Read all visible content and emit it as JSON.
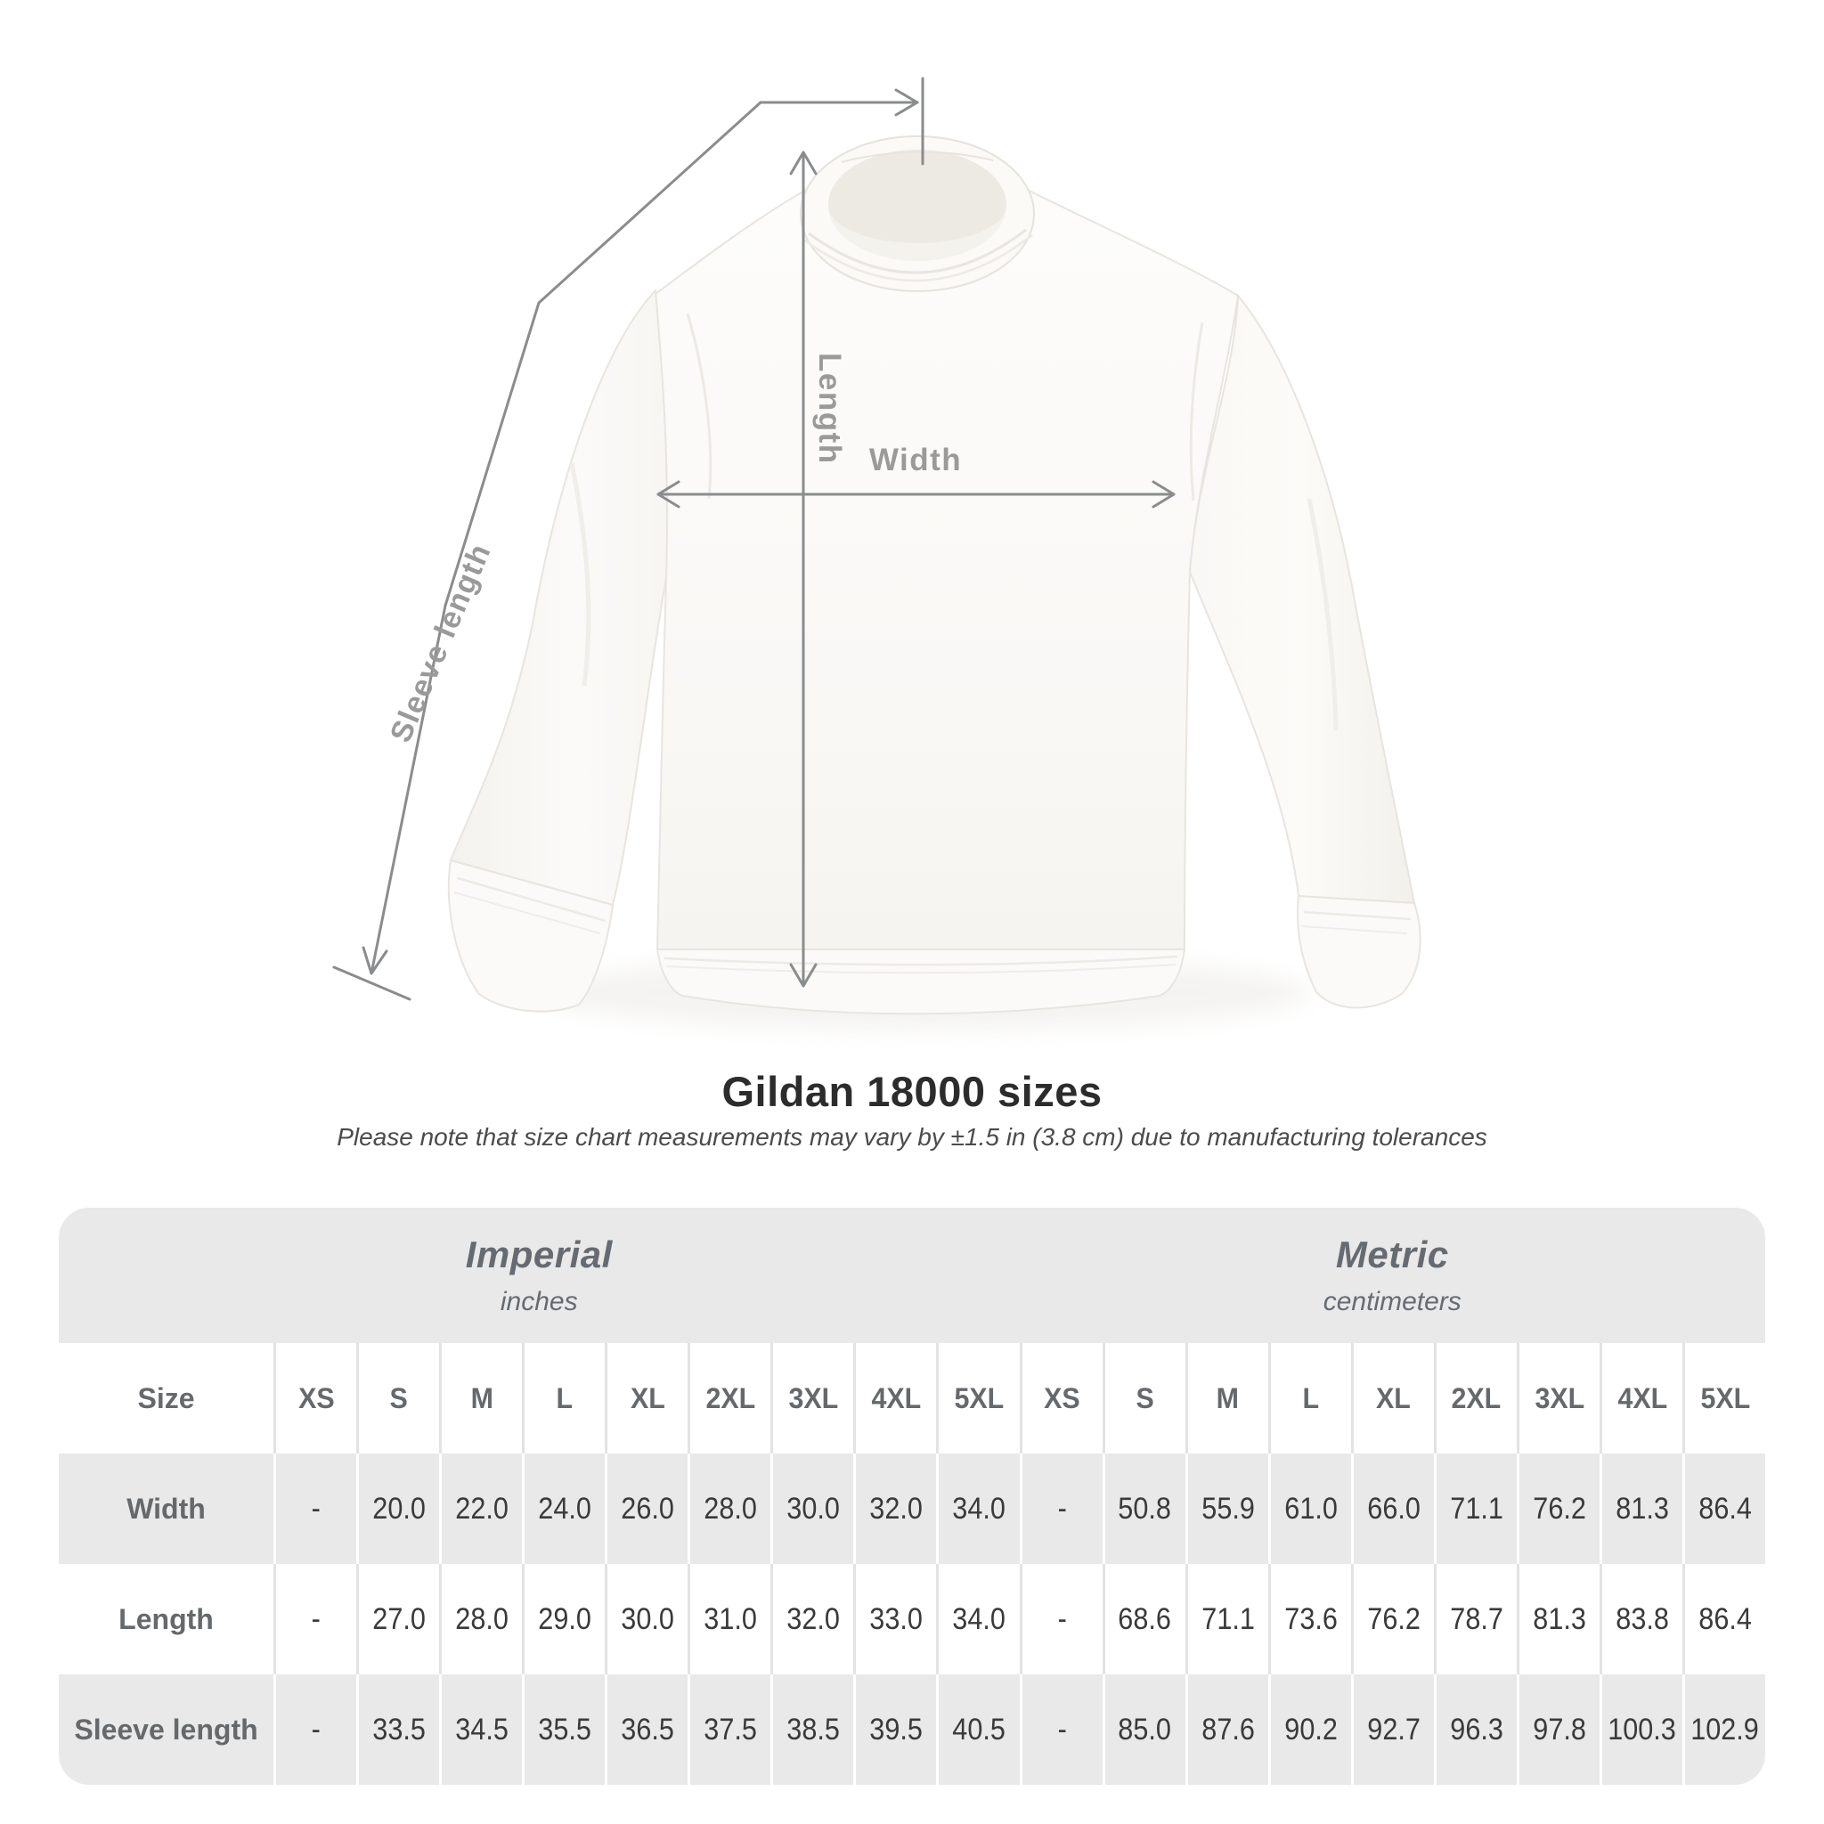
{
  "heading": {
    "title": "Gildan 18000 sizes",
    "subtitle": "Please note that size chart measurements may vary by ±1.5 in (3.8 cm) due to manufacturing tolerances"
  },
  "product": {
    "item": "white crewneck sweatshirt flat-lay",
    "annotations": {
      "length_label": "Length",
      "width_label": "Width",
      "sleeve_label": "Sleeve length"
    }
  },
  "size_table": {
    "size_header": "Size",
    "unit_groups": [
      {
        "label": "Imperial",
        "sublabel": "inches"
      },
      {
        "label": "Metric",
        "sublabel": "centimeters"
      }
    ],
    "sizes": [
      "XS",
      "S",
      "M",
      "L",
      "XL",
      "2XL",
      "3XL",
      "4XL",
      "5XL"
    ],
    "rows": [
      {
        "label": "Width",
        "imperial": [
          "-",
          "20.0",
          "22.0",
          "24.0",
          "26.0",
          "28.0",
          "30.0",
          "32.0",
          "34.0"
        ],
        "metric": [
          "-",
          "50.8",
          "55.9",
          "61.0",
          "66.0",
          "71.1",
          "76.2",
          "81.3",
          "86.4"
        ]
      },
      {
        "label": "Length",
        "imperial": [
          "-",
          "27.0",
          "28.0",
          "29.0",
          "30.0",
          "31.0",
          "32.0",
          "33.0",
          "34.0"
        ],
        "metric": [
          "-",
          "68.6",
          "71.1",
          "73.6",
          "76.2",
          "78.7",
          "81.3",
          "83.8",
          "86.4"
        ]
      },
      {
        "label": "Sleeve length",
        "imperial": [
          "-",
          "33.5",
          "34.5",
          "35.5",
          "36.5",
          "37.5",
          "38.5",
          "39.5",
          "40.5"
        ],
        "metric": [
          "-",
          "85.0",
          "87.6",
          "90.2",
          "92.7",
          "96.3",
          "97.8",
          "100.3",
          "102.9"
        ]
      }
    ]
  },
  "chart_data": {
    "type": "table",
    "title": "Gildan 18000 sizes",
    "note": "Measurements may vary by ±1.5 in (3.8 cm) due to manufacturing tolerances",
    "units": [
      "inches",
      "centimeters"
    ],
    "sizes": [
      "XS",
      "S",
      "M",
      "L",
      "XL",
      "2XL",
      "3XL",
      "4XL",
      "5XL"
    ],
    "measurements": [
      {
        "name": "Width",
        "inches": [
          null,
          20.0,
          22.0,
          24.0,
          26.0,
          28.0,
          30.0,
          32.0,
          34.0
        ],
        "centimeters": [
          null,
          50.8,
          55.9,
          61.0,
          66.0,
          71.1,
          76.2,
          81.3,
          86.4
        ]
      },
      {
        "name": "Length",
        "inches": [
          null,
          27.0,
          28.0,
          29.0,
          30.0,
          31.0,
          32.0,
          33.0,
          34.0
        ],
        "centimeters": [
          null,
          68.6,
          71.1,
          73.6,
          76.2,
          78.7,
          81.3,
          83.8,
          86.4
        ]
      },
      {
        "name": "Sleeve length",
        "inches": [
          null,
          33.5,
          34.5,
          35.5,
          36.5,
          37.5,
          38.5,
          39.5,
          40.5
        ],
        "centimeters": [
          null,
          85.0,
          87.6,
          90.2,
          92.7,
          96.3,
          97.8,
          100.3,
          102.9
        ]
      }
    ]
  },
  "colors": {
    "table_band": "#e9e9e9",
    "separator_on_white": "#e3e3e3",
    "separator_on_gray": "#ffffff",
    "header_text": "#66696b",
    "data_text": "#3a3a3a",
    "annotation_line": "#8a8c8d",
    "annotation_label": "#9a9a9a",
    "title_text": "#2c2c2c"
  }
}
